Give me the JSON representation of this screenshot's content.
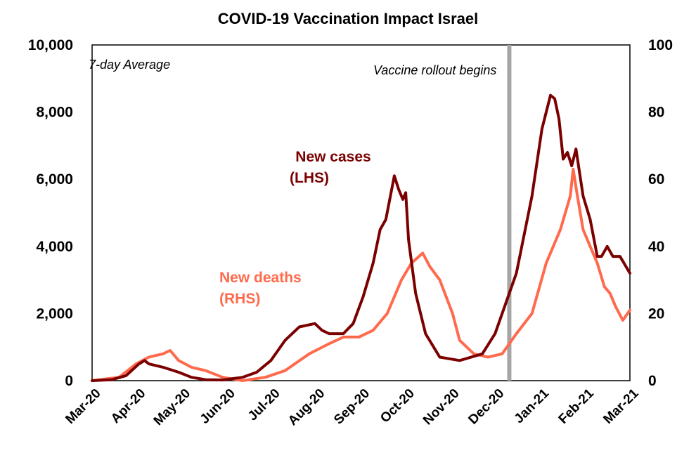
{
  "chart_data": {
    "type": "line",
    "title": "COVID-19 Vaccination Impact Israel",
    "annotation_top_left": "7-day Average",
    "event_label": "Vaccine rollout begins",
    "event_date": "2020-12-20",
    "grid": false,
    "x_range": [
      "2020-03-01",
      "2021-03-15"
    ],
    "x_ticks": [
      "Mar-20",
      "Apr-20",
      "May-20",
      "Jun-20",
      "Jul-20",
      "Aug-20",
      "Sep-20",
      "Oct-20",
      "Nov-20",
      "Dec-20",
      "Jan-21",
      "Feb-21",
      "Mar-21"
    ],
    "y_left": {
      "min": 0,
      "max": 10000,
      "ticks": [
        "0",
        "2,000",
        "4,000",
        "6,000",
        "8,000",
        "10,000"
      ]
    },
    "y_right": {
      "min": 0,
      "max": 100,
      "ticks": [
        "0",
        "20",
        "40",
        "60",
        "80",
        "100"
      ]
    },
    "series": [
      {
        "name_line1": "New cases",
        "name_line2": "(LHS)",
        "axis": "left",
        "color": "#7b0000",
        "points": [
          [
            "2020-03-01",
            0
          ],
          [
            "2020-03-15",
            30
          ],
          [
            "2020-03-25",
            150
          ],
          [
            "2020-04-03",
            500
          ],
          [
            "2020-04-07",
            600
          ],
          [
            "2020-04-10",
            500
          ],
          [
            "2020-04-20",
            400
          ],
          [
            "2020-05-01",
            250
          ],
          [
            "2020-05-10",
            100
          ],
          [
            "2020-05-20",
            30
          ],
          [
            "2020-06-01",
            20
          ],
          [
            "2020-06-15",
            100
          ],
          [
            "2020-06-25",
            250
          ],
          [
            "2020-07-05",
            600
          ],
          [
            "2020-07-15",
            1200
          ],
          [
            "2020-07-25",
            1600
          ],
          [
            "2020-08-05",
            1700
          ],
          [
            "2020-08-10",
            1500
          ],
          [
            "2020-08-15",
            1400
          ],
          [
            "2020-08-25",
            1400
          ],
          [
            "2020-09-01",
            1700
          ],
          [
            "2020-09-08",
            2500
          ],
          [
            "2020-09-15",
            3500
          ],
          [
            "2020-09-20",
            4500
          ],
          [
            "2020-09-24",
            4800
          ],
          [
            "2020-09-30",
            6100
          ],
          [
            "2020-10-03",
            5700
          ],
          [
            "2020-10-06",
            5400
          ],
          [
            "2020-10-08",
            5600
          ],
          [
            "2020-10-10",
            4200
          ],
          [
            "2020-10-15",
            2600
          ],
          [
            "2020-10-22",
            1400
          ],
          [
            "2020-11-01",
            700
          ],
          [
            "2020-11-15",
            600
          ],
          [
            "2020-12-01",
            800
          ],
          [
            "2020-12-10",
            1400
          ],
          [
            "2020-12-20",
            2600
          ],
          [
            "2020-12-25",
            3200
          ],
          [
            "2021-01-05",
            5500
          ],
          [
            "2021-01-12",
            7500
          ],
          [
            "2021-01-18",
            8500
          ],
          [
            "2021-01-21",
            8400
          ],
          [
            "2021-01-24",
            7800
          ],
          [
            "2021-01-27",
            6600
          ],
          [
            "2021-01-30",
            6800
          ],
          [
            "2021-02-02",
            6400
          ],
          [
            "2021-02-05",
            6900
          ],
          [
            "2021-02-10",
            5500
          ],
          [
            "2021-02-15",
            4800
          ],
          [
            "2021-02-20",
            3700
          ],
          [
            "2021-02-23",
            3700
          ],
          [
            "2021-02-27",
            4000
          ],
          [
            "2021-03-03",
            3700
          ],
          [
            "2021-03-08",
            3700
          ],
          [
            "2021-03-15",
            3200
          ]
        ]
      },
      {
        "name_line1": "New deaths",
        "name_line2": "(RHS)",
        "axis": "right",
        "color": "#ff6a4d",
        "points": [
          [
            "2020-03-01",
            0
          ],
          [
            "2020-03-20",
            1
          ],
          [
            "2020-04-01",
            5
          ],
          [
            "2020-04-10",
            7
          ],
          [
            "2020-04-20",
            8
          ],
          [
            "2020-04-25",
            9
          ],
          [
            "2020-05-01",
            6
          ],
          [
            "2020-05-10",
            4
          ],
          [
            "2020-05-20",
            3
          ],
          [
            "2020-06-01",
            1
          ],
          [
            "2020-06-15",
            0
          ],
          [
            "2020-07-01",
            1
          ],
          [
            "2020-07-15",
            3
          ],
          [
            "2020-08-01",
            8
          ],
          [
            "2020-08-15",
            11
          ],
          [
            "2020-08-25",
            13
          ],
          [
            "2020-09-05",
            13
          ],
          [
            "2020-09-15",
            15
          ],
          [
            "2020-09-25",
            20
          ],
          [
            "2020-10-05",
            30
          ],
          [
            "2020-10-12",
            35
          ],
          [
            "2020-10-20",
            38
          ],
          [
            "2020-10-25",
            34
          ],
          [
            "2020-11-01",
            30
          ],
          [
            "2020-11-10",
            20
          ],
          [
            "2020-11-15",
            12
          ],
          [
            "2020-11-25",
            8
          ],
          [
            "2020-12-05",
            7
          ],
          [
            "2020-12-15",
            8
          ],
          [
            "2020-12-25",
            14
          ],
          [
            "2021-01-05",
            20
          ],
          [
            "2021-01-15",
            35
          ],
          [
            "2021-01-25",
            45
          ],
          [
            "2021-02-01",
            55
          ],
          [
            "2021-02-03",
            63
          ],
          [
            "2021-02-06",
            55
          ],
          [
            "2021-02-10",
            45
          ],
          [
            "2021-02-15",
            40
          ],
          [
            "2021-02-20",
            35
          ],
          [
            "2021-02-25",
            28
          ],
          [
            "2021-03-01",
            26
          ],
          [
            "2021-03-05",
            22
          ],
          [
            "2021-03-10",
            18
          ],
          [
            "2021-03-15",
            21
          ]
        ]
      }
    ]
  }
}
